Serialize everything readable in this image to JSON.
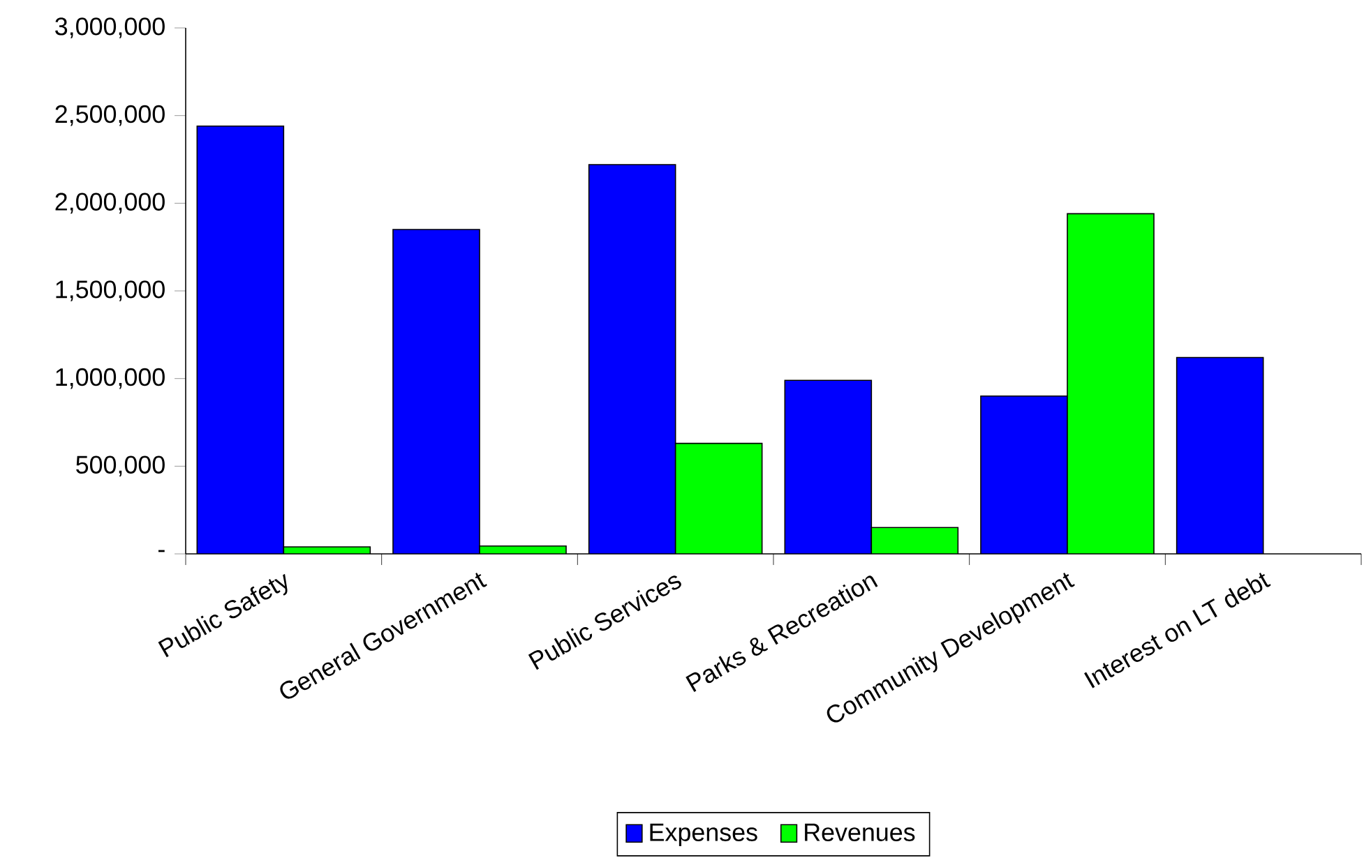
{
  "chart_data": {
    "type": "bar",
    "categories": [
      "Public Safety",
      "General Government",
      "Public Services",
      "Parks & Recreation",
      "Community Development",
      "Interest on LT debt"
    ],
    "series": [
      {
        "name": "Expenses",
        "color": "#0000ff",
        "values": [
          2440000,
          1850000,
          2220000,
          990000,
          900000,
          1120000
        ]
      },
      {
        "name": "Revenues",
        "color": "#00ff00",
        "values": [
          40000,
          45000,
          630000,
          150000,
          1940000,
          null
        ]
      }
    ],
    "ylim": [
      0,
      3000000
    ],
    "yticks": [
      {
        "value": 0,
        "label": "-"
      },
      {
        "value": 500000,
        "label": "500,000"
      },
      {
        "value": 1000000,
        "label": "1,000,000"
      },
      {
        "value": 1500000,
        "label": "1,500,000"
      },
      {
        "value": 2000000,
        "label": "2,000,000"
      },
      {
        "value": 2500000,
        "label": "2,500,000"
      },
      {
        "value": 3000000,
        "label": "3,000,000"
      }
    ],
    "grid": false,
    "legend": "bottom"
  }
}
